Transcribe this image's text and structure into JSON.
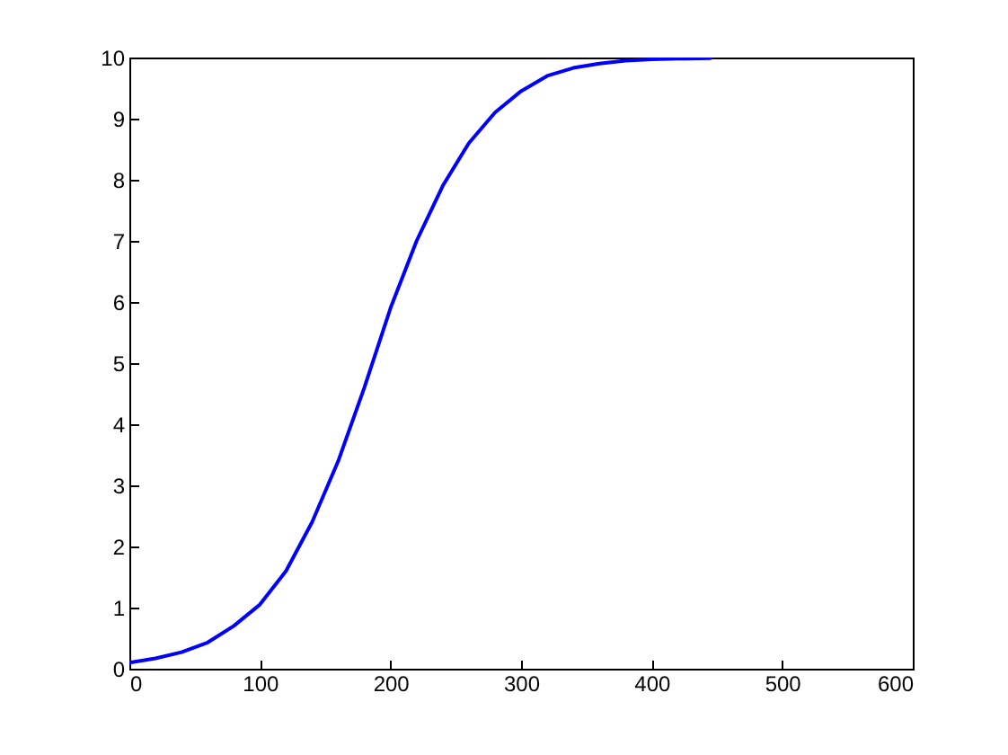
{
  "chart_data": {
    "type": "line",
    "x": [
      0,
      20,
      40,
      60,
      80,
      100,
      120,
      140,
      160,
      180,
      200,
      220,
      240,
      260,
      280,
      300,
      320,
      340,
      360,
      380,
      400,
      420,
      445
    ],
    "series": [
      {
        "color": "#0000ff",
        "values": [
          0.1,
          0.17,
          0.27,
          0.43,
          0.7,
          1.05,
          1.6,
          2.4,
          3.4,
          4.6,
          5.9,
          7.0,
          7.9,
          8.6,
          9.1,
          9.45,
          9.7,
          9.83,
          9.9,
          9.95,
          9.97,
          9.98,
          9.99
        ]
      }
    ],
    "xlim": [
      0,
      600
    ],
    "xticks": [
      0,
      100,
      200,
      300,
      400,
      500,
      600
    ],
    "ylim": [
      0,
      10
    ],
    "yticks": [
      0,
      1,
      2,
      3,
      4,
      5,
      6,
      7,
      8,
      9,
      10
    ],
    "grid": false,
    "legend": false,
    "marker": "none",
    "line_style": "solid"
  }
}
